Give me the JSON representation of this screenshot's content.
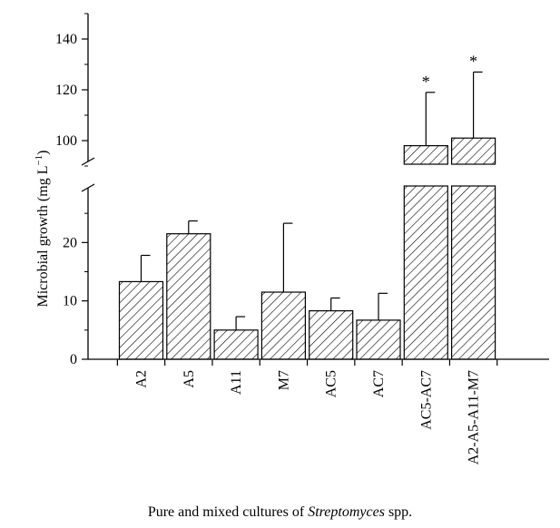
{
  "chart_data": {
    "type": "bar",
    "title": "",
    "xlabel_parts": [
      "Pure and mixed cultures of ",
      "Streptomyces",
      " spp."
    ],
    "ylabel": "Microbial growth (mg L",
    "ylabel_sup": "−1",
    "ylabel_close": ")",
    "categories": [
      "A2",
      "A5",
      "A11",
      "M7",
      "AC5",
      "AC7",
      "AC5-AC7",
      "A2-A5-A11-M7"
    ],
    "values": [
      13.3,
      21.5,
      5.0,
      11.5,
      8.3,
      6.7,
      98,
      101
    ],
    "errors": [
      4.5,
      2.2,
      2.3,
      11.8,
      2.2,
      4.6,
      21,
      26
    ],
    "annotations": [
      "",
      "",
      "",
      "",
      "",
      "",
      "*",
      "*"
    ],
    "y_axis": {
      "broken": true,
      "lower_range": [
        0,
        30
      ],
      "upper_range": [
        90,
        150
      ],
      "lower_ticks": [
        0,
        10,
        20
      ],
      "upper_ticks": [
        100,
        120,
        140
      ],
      "tick_labels": [
        "0",
        "10",
        "20",
        "100",
        "120",
        "140"
      ]
    },
    "fill": "diagonal-hatch",
    "grid": false
  }
}
